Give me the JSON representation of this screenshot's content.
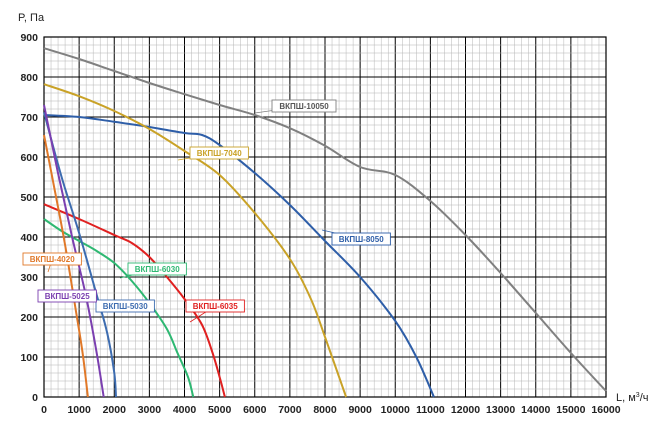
{
  "chart_data": {
    "type": "line",
    "ylabel": "P, Па",
    "xlabel_prefix": "L, м",
    "xlabel_sup": "3",
    "xlabel_suffix": "/ч",
    "xlim": [
      0,
      16000
    ],
    "ylim": [
      0,
      900
    ],
    "x_ticks": [
      "0",
      "1000",
      "2000",
      "3000",
      "4000",
      "5000",
      "6000",
      "7000",
      "8000",
      "9000",
      "10000",
      "11000",
      "12000",
      "13000",
      "14000",
      "15000",
      "16000"
    ],
    "y_ticks": [
      "0",
      "100",
      "200",
      "300",
      "400",
      "500",
      "600",
      "700",
      "800",
      "900"
    ],
    "grid": true,
    "series": [
      {
        "name": "ВКПШ-10050",
        "color": "#808080",
        "points": [
          [
            0,
            872
          ],
          [
            1000,
            845
          ],
          [
            2000,
            815
          ],
          [
            3000,
            785
          ],
          [
            4000,
            757
          ],
          [
            5000,
            730
          ],
          [
            6000,
            705
          ],
          [
            7000,
            672
          ],
          [
            8000,
            628
          ],
          [
            9000,
            575
          ],
          [
            10000,
            555
          ],
          [
            11000,
            490
          ],
          [
            12000,
            405
          ],
          [
            13000,
            310
          ],
          [
            14000,
            210
          ],
          [
            15000,
            110
          ],
          [
            16000,
            15
          ]
        ]
      },
      {
        "name": "ВКПШ-8050",
        "color": "#2e5ea8",
        "points": [
          [
            0,
            705
          ],
          [
            1000,
            700
          ],
          [
            2000,
            688
          ],
          [
            3000,
            675
          ],
          [
            4000,
            660
          ],
          [
            4500,
            655
          ],
          [
            5000,
            630
          ],
          [
            6000,
            560
          ],
          [
            7000,
            480
          ],
          [
            8000,
            390
          ],
          [
            9000,
            300
          ],
          [
            10000,
            190
          ],
          [
            10600,
            100
          ],
          [
            11100,
            0
          ]
        ]
      },
      {
        "name": "ВКПШ-7040",
        "color": "#c9a227",
        "points": [
          [
            0,
            782
          ],
          [
            1000,
            752
          ],
          [
            2000,
            715
          ],
          [
            3000,
            670
          ],
          [
            4000,
            615
          ],
          [
            5000,
            555
          ],
          [
            6000,
            460
          ],
          [
            7000,
            345
          ],
          [
            7600,
            245
          ],
          [
            8000,
            150
          ],
          [
            8400,
            50
          ],
          [
            8600,
            0
          ]
        ]
      },
      {
        "name": "ВКПШ-6035",
        "color": "#e02020",
        "points": [
          [
            0,
            482
          ],
          [
            1000,
            445
          ],
          [
            2000,
            405
          ],
          [
            2500,
            385
          ],
          [
            3000,
            350
          ],
          [
            3500,
            300
          ],
          [
            4000,
            245
          ],
          [
            4500,
            180
          ],
          [
            4800,
            110
          ],
          [
            5000,
            50
          ],
          [
            5150,
            0
          ]
        ]
      },
      {
        "name": "ВКПШ-6030",
        "color": "#2eb872",
        "points": [
          [
            0,
            445
          ],
          [
            500,
            415
          ],
          [
            1000,
            390
          ],
          [
            1500,
            365
          ],
          [
            2000,
            335
          ],
          [
            2500,
            290
          ],
          [
            3000,
            235
          ],
          [
            3500,
            170
          ],
          [
            3800,
            110
          ],
          [
            4100,
            50
          ],
          [
            4250,
            0
          ]
        ]
      },
      {
        "name": "ВКПШ-5030",
        "color": "#3d6cb0",
        "points": [
          [
            0,
            712
          ],
          [
            500,
            550
          ],
          [
            1000,
            410
          ],
          [
            1500,
            255
          ],
          [
            1800,
            160
          ],
          [
            2000,
            60
          ],
          [
            2050,
            0
          ]
        ]
      },
      {
        "name": "ВКПШ-5025",
        "color": "#7b3fb0",
        "points": [
          [
            0,
            730
          ],
          [
            400,
            560
          ],
          [
            800,
            400
          ],
          [
            1200,
            250
          ],
          [
            1500,
            110
          ],
          [
            1700,
            0
          ]
        ]
      },
      {
        "name": "ВКПШ-4020",
        "color": "#e07828",
        "points": [
          [
            0,
            655
          ],
          [
            300,
            520
          ],
          [
            600,
            380
          ],
          [
            900,
            220
          ],
          [
            1100,
            110
          ],
          [
            1250,
            0
          ]
        ]
      }
    ],
    "annotations": [
      {
        "series": "ВКПШ-10050",
        "text": "ВКПШ-10050",
        "border": "#808080",
        "color": "#555555"
      },
      {
        "series": "ВКПШ-8050",
        "text": "ВКПШ-8050",
        "border": "#2e5ea8",
        "color": "#2e5ea8"
      },
      {
        "series": "ВКПШ-7040",
        "text": "ВКПШ-7040",
        "border": "#c9a227",
        "color": "#c9a227"
      },
      {
        "series": "ВКПШ-6035",
        "text": "ВКПШ-6035",
        "border": "#e02020",
        "color": "#e02020"
      },
      {
        "series": "ВКПШ-6030",
        "text": "ВКПШ-6030",
        "border": "#2eb872",
        "color": "#2eb872"
      },
      {
        "series": "ВКПШ-5030",
        "text": "ВКПШ-5030",
        "border": "#3d6cb0",
        "color": "#3d6cb0"
      },
      {
        "series": "ВКПШ-5025",
        "text": "ВКПШ-5025",
        "border": "#7b3fb0",
        "color": "#7b3fb0"
      },
      {
        "series": "ВКПШ-4020",
        "text": "ВКПШ-4020",
        "border": "#e07828",
        "color": "#e07828"
      }
    ]
  }
}
